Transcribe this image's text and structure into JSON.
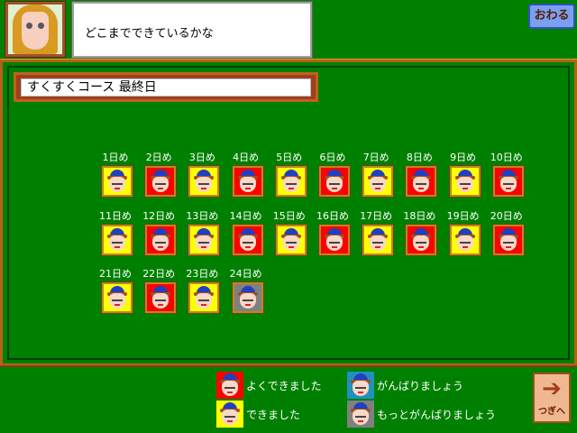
{
  "header": {
    "message": "どこまでできているかな",
    "quit_label": "おわる"
  },
  "course_title": "すくすくコース 最終日",
  "colors": {
    "excellent": "#ff0000",
    "good": "#ffff00",
    "try": "#2090c0",
    "try_more": "#808080",
    "background": "#008000"
  },
  "days": [
    {
      "label": "1日め",
      "rating": "good"
    },
    {
      "label": "2日め",
      "rating": "excellent"
    },
    {
      "label": "3日め",
      "rating": "good"
    },
    {
      "label": "4日め",
      "rating": "excellent"
    },
    {
      "label": "5日め",
      "rating": "good"
    },
    {
      "label": "6日め",
      "rating": "excellent"
    },
    {
      "label": "7日め",
      "rating": "good"
    },
    {
      "label": "8日め",
      "rating": "excellent"
    },
    {
      "label": "9日め",
      "rating": "good"
    },
    {
      "label": "10日め",
      "rating": "excellent"
    },
    {
      "label": "11日め",
      "rating": "good"
    },
    {
      "label": "12日め",
      "rating": "excellent"
    },
    {
      "label": "13日め",
      "rating": "good"
    },
    {
      "label": "14日め",
      "rating": "excellent"
    },
    {
      "label": "15日め",
      "rating": "good"
    },
    {
      "label": "16日め",
      "rating": "excellent"
    },
    {
      "label": "17日め",
      "rating": "good"
    },
    {
      "label": "18日め",
      "rating": "excellent"
    },
    {
      "label": "19日め",
      "rating": "good"
    },
    {
      "label": "20日め",
      "rating": "excellent"
    },
    {
      "label": "21日め",
      "rating": "good"
    },
    {
      "label": "22日め",
      "rating": "excellent"
    },
    {
      "label": "23日め",
      "rating": "good"
    },
    {
      "label": "24日め",
      "rating": "try_more"
    }
  ],
  "legend": [
    {
      "rating": "excellent",
      "label": "よくできました"
    },
    {
      "rating": "good",
      "label": "できました"
    },
    {
      "rating": "try",
      "label": "がんばりましょう"
    },
    {
      "rating": "try_more",
      "label": "もっとがんばりましょう"
    }
  ],
  "next_label": "つぎへ"
}
